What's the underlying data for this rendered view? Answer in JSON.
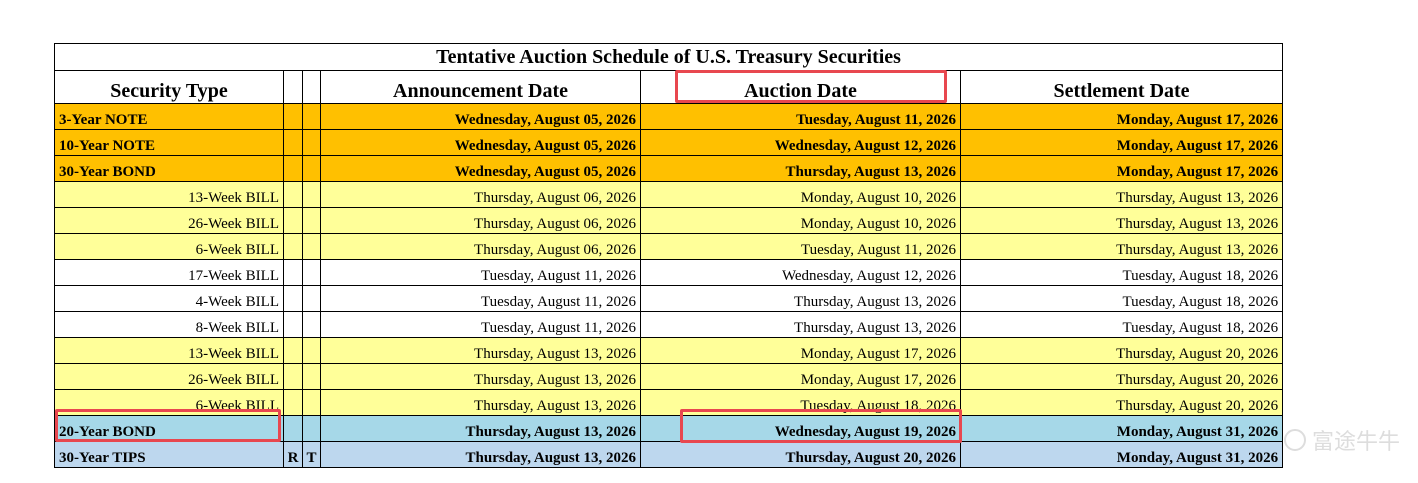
{
  "title": "Tentative Auction Schedule of U.S. Treasury Securities",
  "headers": {
    "security_type": "Security Type",
    "announcement_date": "Announcement Date",
    "auction_date": "Auction Date",
    "settlement_date": "Settlement Date"
  },
  "rows": [
    {
      "security": "3-Year  NOTE",
      "r": "",
      "t": "",
      "announcement": "Wednesday, August 05, 2026",
      "auction": "Tuesday, August 11, 2026",
      "settlement": "Monday, August 17, 2026"
    },
    {
      "security": "10-Year  NOTE",
      "r": "",
      "t": "",
      "announcement": "Wednesday, August 05, 2026",
      "auction": "Wednesday, August 12, 2026",
      "settlement": "Monday, August 17, 2026"
    },
    {
      "security": "30-Year  BOND",
      "r": "",
      "t": "",
      "announcement": "Wednesday, August 05, 2026",
      "auction": "Thursday, August 13, 2026",
      "settlement": "Monday, August 17, 2026"
    },
    {
      "security": "13-Week  BILL",
      "r": "",
      "t": "",
      "announcement": "Thursday, August 06, 2026",
      "auction": "Monday, August 10, 2026",
      "settlement": "Thursday, August 13, 2026"
    },
    {
      "security": "26-Week  BILL",
      "r": "",
      "t": "",
      "announcement": "Thursday, August 06, 2026",
      "auction": "Monday, August 10, 2026",
      "settlement": "Thursday, August 13, 2026"
    },
    {
      "security": "6-Week  BILL",
      "r": "",
      "t": "",
      "announcement": "Thursday, August 06, 2026",
      "auction": "Tuesday, August 11, 2026",
      "settlement": "Thursday, August 13, 2026"
    },
    {
      "security": "17-Week  BILL",
      "r": "",
      "t": "",
      "announcement": "Tuesday, August 11, 2026",
      "auction": "Wednesday, August 12, 2026",
      "settlement": "Tuesday, August 18, 2026"
    },
    {
      "security": "4-Week  BILL",
      "r": "",
      "t": "",
      "announcement": "Tuesday, August 11, 2026",
      "auction": "Thursday, August 13, 2026",
      "settlement": "Tuesday, August 18, 2026"
    },
    {
      "security": "8-Week  BILL",
      "r": "",
      "t": "",
      "announcement": "Tuesday, August 11, 2026",
      "auction": "Thursday, August 13, 2026",
      "settlement": "Tuesday, August 18, 2026"
    },
    {
      "security": "13-Week  BILL",
      "r": "",
      "t": "",
      "announcement": "Thursday, August 13, 2026",
      "auction": "Monday, August 17, 2026",
      "settlement": "Thursday, August 20, 2026"
    },
    {
      "security": "26-Week  BILL",
      "r": "",
      "t": "",
      "announcement": "Thursday, August 13, 2026",
      "auction": "Monday, August 17, 2026",
      "settlement": "Thursday, August 20, 2026"
    },
    {
      "security": "6-Week  BILL",
      "r": "",
      "t": "",
      "announcement": "Thursday, August 13, 2026",
      "auction": "Tuesday, August 18, 2026",
      "settlement": "Thursday, August 20, 2026"
    },
    {
      "security": "20-Year  BOND",
      "r": "",
      "t": "",
      "announcement": "Thursday, August 13, 2026",
      "auction": "Wednesday, August 19, 2026",
      "settlement": "Monday, August 31, 2026"
    },
    {
      "security": "30-Year  TIPS",
      "r": "R",
      "t": "T",
      "announcement": "Thursday, August 13, 2026",
      "auction": "Thursday, August 20, 2026",
      "settlement": "Monday, August 31, 2026"
    }
  ],
  "row_styles": [
    "orange-bold",
    "orange-bold",
    "orange-bold",
    "yellow",
    "yellow",
    "yellow",
    "white",
    "white",
    "white",
    "yellow",
    "yellow",
    "yellow",
    "blue-bold",
    "lightblue-bold"
  ],
  "colors": {
    "orange": "#ffc000",
    "yellow": "#ffff99",
    "blue": "#a6d8e8",
    "lightblue": "#bdd7ee",
    "highlight": "#e8474f"
  },
  "watermark": "富途牛牛"
}
